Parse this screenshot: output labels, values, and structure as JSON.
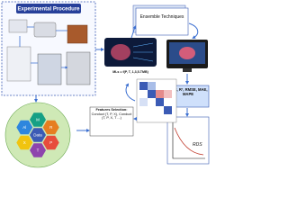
{
  "header": {
    "title": "Experimental Procedure"
  },
  "ensemble": {
    "label": "Ensemble Techniques"
  },
  "model": {
    "equation": "MLs = f(P, T, 1,3,5-TMB)"
  },
  "features": {
    "title": "Features Selection:",
    "text": "Conduct (T, P, X), Conduct (T, P, X, T ...)"
  },
  "hexagons": {
    "center": "Data",
    "items": [
      "P",
      "T",
      "X",
      "Al",
      "M",
      "R"
    ]
  },
  "metrics": {
    "text": "MSE, R², RMSE, MAE, MAPE"
  },
  "result": {
    "label": "RDS"
  }
}
